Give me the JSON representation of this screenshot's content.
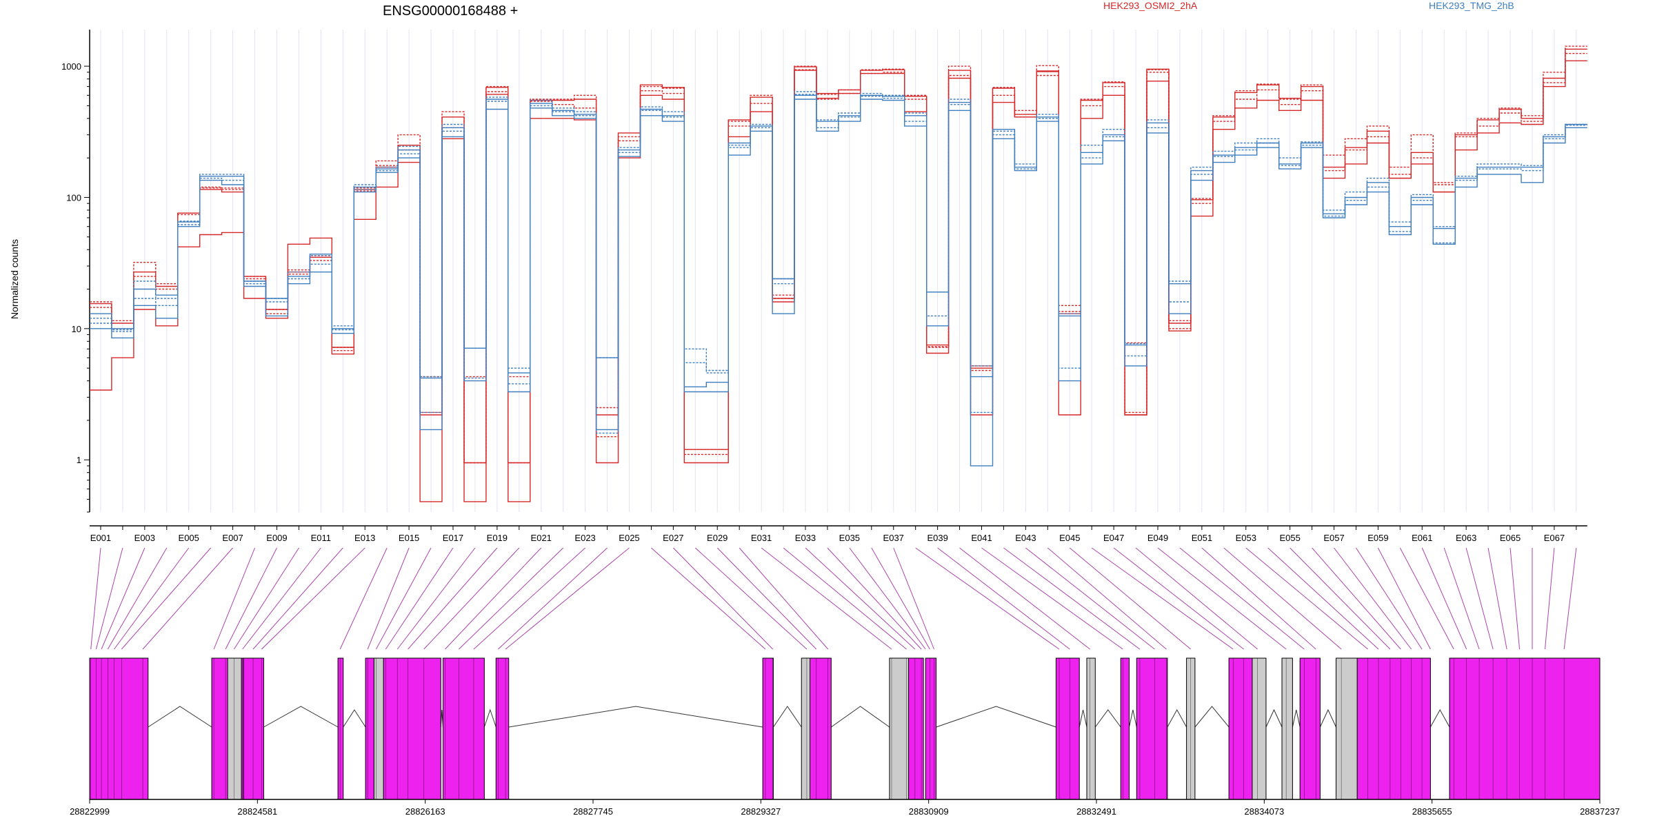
{
  "chart_data": {
    "type": "line",
    "title": "ENSG00000168488 +",
    "ylabel": "Normalized counts",
    "yscale": "log",
    "ylim": [
      0.4,
      1900
    ],
    "yticks": [
      1,
      10,
      100,
      1000
    ],
    "legend": [
      "HEK293_OSMI2_2hA",
      "HEK293_TMG_2hB"
    ],
    "legend_placement": "top-right",
    "colors": {
      "osmi2": "#d62728",
      "tmg": "#3f7fbf",
      "exon": "#ee22ee",
      "exon_gray": "#cccccc",
      "link": "#aa44aa"
    },
    "exon_ids": [
      "E001",
      "E002",
      "E003",
      "E004",
      "E005",
      "E006",
      "E007",
      "E008",
      "E009",
      "E010",
      "E011",
      "E012",
      "E013",
      "E014",
      "E015",
      "E016",
      "E017",
      "E018",
      "E019",
      "E020",
      "E021",
      "E022",
      "E023",
      "E024",
      "E025",
      "E026",
      "E027",
      "E028",
      "E029",
      "E030",
      "E031",
      "E032",
      "E033",
      "E034",
      "E035",
      "E036",
      "E037",
      "E038",
      "E039",
      "E040",
      "E041",
      "E042",
      "E043",
      "E044",
      "E045",
      "E046",
      "E047",
      "E048",
      "E049",
      "E050",
      "E051",
      "E052",
      "E053",
      "E054",
      "E055",
      "E056",
      "E057",
      "E058",
      "E059",
      "E060",
      "E061",
      "E062",
      "E063",
      "E064",
      "E065",
      "E066",
      "E067",
      "E068"
    ],
    "x_tick_labels": [
      "E001",
      "E003",
      "E005",
      "E007",
      "E009",
      "E011",
      "E013",
      "E015",
      "E017",
      "E019",
      "E021",
      "E023",
      "E025",
      "E027",
      "E029",
      "E031",
      "E033",
      "E035",
      "E037",
      "E039",
      "E041",
      "E043",
      "E045",
      "E047",
      "E049",
      "E051",
      "E053",
      "E055",
      "E057",
      "E059",
      "E061",
      "E063",
      "E065",
      "E067"
    ],
    "series": [
      {
        "name": "HEK293_OSMI2_2hA",
        "group": "osmi2",
        "values": [
          15.5,
          11,
          27,
          21,
          76,
          115,
          110,
          25,
          14,
          27,
          35,
          7.2,
          115,
          170,
          250,
          2.2,
          410,
          0.95,
          690,
          0.95,
          550,
          550,
          560,
          2.2,
          310,
          720,
          690,
          1.2,
          1.2,
          390,
          580,
          17,
          990,
          620,
          660,
          930,
          940,
          590,
          7.5,
          930,
          5,
          680,
          430,
          910,
          13,
          550,
          750,
          2.2,
          950,
          11,
          96,
          410,
          630,
          720,
          570,
          700,
          170,
          240,
          320,
          140,
          220,
          110,
          300,
          390,
          470,
          400,
          810,
          1350
        ]
      },
      {
        "name": "HEK293_OSMI2_2hA",
        "group": "osmi2",
        "values": [
          14.5,
          10,
          25,
          20,
          74,
          118,
          115,
          24,
          13,
          26,
          33,
          6.8,
          112,
          175,
          230,
          4.3,
          340,
          4.3,
          640,
          4.3,
          540,
          510,
          480,
          2.5,
          270,
          650,
          620,
          1.1,
          1.1,
          350,
          520,
          18,
          940,
          560,
          620,
          880,
          900,
          560,
          7.2,
          850,
          4.8,
          600,
          410,
          850,
          15,
          500,
          700,
          7.8,
          900,
          10,
          90,
          380,
          560,
          660,
          510,
          650,
          160,
          230,
          290,
          150,
          200,
          125,
          290,
          350,
          440,
          380,
          750,
          1250
        ]
      },
      {
        "name": "HEK293_OSMI2_2hA",
        "group": "osmi2",
        "values": [
          3.4,
          6,
          14,
          10.5,
          42,
          52,
          54,
          17,
          12,
          44,
          49,
          6.4,
          68,
          120,
          185,
          0.48,
          280,
          0.48,
          610,
          0.48,
          400,
          400,
          390,
          0.95,
          200,
          600,
          560,
          0.95,
          0.95,
          290,
          450,
          16,
          930,
          570,
          620,
          880,
          880,
          450,
          6.5,
          810,
          2.2,
          530,
          410,
          920,
          2.2,
          400,
          600,
          2.2,
          770,
          9.6,
          72,
          330,
          480,
          550,
          460,
          550,
          140,
          180,
          260,
          140,
          180,
          110,
          230,
          310,
          370,
          360,
          700,
          1100
        ]
      },
      {
        "name": "HEK293_OSMI2_2hA",
        "group": "osmi2",
        "values": [
          16,
          11.5,
          32,
          22,
          76,
          120,
          118,
          25,
          14,
          28,
          36,
          7.2,
          118,
          190,
          300,
          2.3,
          450,
          0.95,
          700,
          0.95,
          560,
          560,
          600,
          1.5,
          290,
          700,
          680,
          1.2,
          1.2,
          380,
          600,
          17,
          1000,
          610,
          660,
          940,
          950,
          600,
          7.3,
          1000,
          5.2,
          690,
          460,
          1010,
          13.5,
          560,
          760,
          2.3,
          940,
          11.5,
          98,
          420,
          650,
          730,
          560,
          720,
          210,
          280,
          350,
          170,
          300,
          130,
          310,
          400,
          480,
          420,
          900,
          1420
        ]
      },
      {
        "name": "HEK293_TMG_2hB",
        "group": "tmg",
        "values": [
          13,
          10,
          20,
          18,
          65,
          145,
          145,
          23,
          17,
          25,
          37,
          10,
          120,
          165,
          230,
          4.2,
          340,
          7.1,
          560,
          4.6,
          520,
          460,
          430,
          6,
          230,
          470,
          420,
          3.6,
          3.9,
          260,
          350,
          24,
          600,
          380,
          420,
          600,
          590,
          420,
          19,
          530,
          4.3,
          330,
          170,
          410,
          12.5,
          220,
          300,
          7.5,
          370,
          22,
          160,
          210,
          240,
          260,
          180,
          260,
          75,
          100,
          130,
          60,
          100,
          58,
          140,
          170,
          170,
          170,
          290,
          360
        ]
      },
      {
        "name": "HEK293_TMG_2hB",
        "group": "tmg",
        "values": [
          11,
          9.5,
          17,
          15,
          62,
          140,
          135,
          22,
          16,
          24,
          31,
          9.8,
          115,
          160,
          215,
          2.3,
          320,
          4.2,
          540,
          3.8,
          500,
          450,
          420,
          1.6,
          220,
          460,
          410,
          5.5,
          4.6,
          240,
          340,
          22,
          610,
          340,
          410,
          590,
          570,
          380,
          12.5,
          510,
          2.3,
          300,
          165,
          400,
          5,
          200,
          290,
          6.2,
          340,
          16,
          150,
          205,
          230,
          260,
          175,
          250,
          72,
          95,
          120,
          55,
          95,
          45,
          135,
          165,
          165,
          160,
          280,
          355
        ]
      },
      {
        "name": "HEK293_TMG_2hB",
        "group": "tmg",
        "values": [
          10,
          8.5,
          15,
          12,
          60,
          135,
          125,
          21,
          12.5,
          22,
          27,
          9.2,
          110,
          155,
          200,
          1.7,
          290,
          4,
          470,
          3.3,
          480,
          420,
          400,
          1.7,
          205,
          420,
          380,
          3.3,
          3.3,
          210,
          320,
          13,
          560,
          320,
          380,
          560,
          550,
          350,
          10.5,
          460,
          0.9,
          280,
          160,
          380,
          4,
          180,
          270,
          5.2,
          310,
          13,
          135,
          185,
          210,
          240,
          165,
          240,
          70,
          88,
          110,
          52,
          88,
          44,
          120,
          150,
          150,
          130,
          260,
          340
        ]
      },
      {
        "name": "HEK293_TMG_2hB",
        "group": "tmg",
        "values": [
          12,
          9.8,
          23,
          17,
          66,
          150,
          150,
          23,
          17,
          27,
          36,
          10.5,
          125,
          170,
          245,
          4.3,
          360,
          7.1,
          580,
          5,
          550,
          480,
          450,
          6,
          240,
          490,
          450,
          7,
          4.8,
          250,
          360,
          24,
          640,
          390,
          440,
          620,
          600,
          440,
          19,
          560,
          5.2,
          320,
          180,
          430,
          13,
          250,
          330,
          7.7,
          390,
          23,
          170,
          225,
          260,
          280,
          200,
          265,
          80,
          110,
          140,
          65,
          105,
          60,
          145,
          180,
          180,
          175,
          300,
          360
        ]
      }
    ],
    "genome_axis": {
      "tick_labels": [
        "28822999",
        "28824581",
        "28826163",
        "28827745",
        "28829327",
        "28830909",
        "28832491",
        "28834073",
        "28835655",
        "28837237"
      ],
      "range": [
        28822999,
        28837237
      ],
      "exon_blocks": [
        {
          "start": 28822999,
          "end": 28823550,
          "fill": "exon"
        },
        {
          "start": 28824150,
          "end": 28824450,
          "fill": "exon"
        },
        {
          "start": 28824300,
          "end": 28824430,
          "fill": "exon_gray"
        },
        {
          "start": 28824450,
          "end": 28824640,
          "fill": "exon"
        },
        {
          "start": 28825340,
          "end": 28825390,
          "fill": "exon"
        },
        {
          "start": 28825600,
          "end": 28825680,
          "fill": "exon"
        },
        {
          "start": 28825680,
          "end": 28825770,
          "fill": "exon_gray"
        },
        {
          "start": 28825770,
          "end": 28826310,
          "fill": "exon"
        },
        {
          "start": 28826330,
          "end": 28826720,
          "fill": "exon"
        },
        {
          "start": 28826830,
          "end": 28826950,
          "fill": "exon"
        },
        {
          "start": 28829345,
          "end": 28829445,
          "fill": "exon"
        },
        {
          "start": 28829710,
          "end": 28829790,
          "fill": "exon_gray"
        },
        {
          "start": 28829790,
          "end": 28829990,
          "fill": "exon"
        },
        {
          "start": 28830540,
          "end": 28830720,
          "fill": "exon_gray"
        },
        {
          "start": 28830720,
          "end": 28830860,
          "fill": "exon"
        },
        {
          "start": 28830880,
          "end": 28830980,
          "fill": "exon"
        },
        {
          "start": 28832110,
          "end": 28832330,
          "fill": "exon"
        },
        {
          "start": 28832400,
          "end": 28832480,
          "fill": "exon_gray"
        },
        {
          "start": 28832720,
          "end": 28832800,
          "fill": "exon"
        },
        {
          "start": 28832870,
          "end": 28833160,
          "fill": "exon"
        },
        {
          "start": 28833340,
          "end": 28833420,
          "fill": "exon_gray"
        },
        {
          "start": 28833740,
          "end": 28833960,
          "fill": "exon"
        },
        {
          "start": 28833960,
          "end": 28834090,
          "fill": "exon_gray"
        },
        {
          "start": 28834240,
          "end": 28834340,
          "fill": "exon_gray"
        },
        {
          "start": 28834410,
          "end": 28834600,
          "fill": "exon"
        },
        {
          "start": 28834750,
          "end": 28834950,
          "fill": "exon_gray"
        },
        {
          "start": 28834950,
          "end": 28835640,
          "fill": "exon"
        },
        {
          "start": 28835820,
          "end": 28837237,
          "fill": "exon"
        }
      ],
      "intron_links": [
        [
          28823550,
          28824150
        ],
        [
          28824640,
          28825340
        ],
        [
          28825390,
          28825600
        ],
        [
          28826310,
          28826330
        ],
        [
          28826720,
          28826830
        ],
        [
          28826950,
          28829345
        ],
        [
          28829445,
          28829710
        ],
        [
          28829990,
          28830540
        ],
        [
          28830980,
          28832110
        ],
        [
          28832330,
          28832400
        ],
        [
          28832480,
          28832720
        ],
        [
          28832800,
          28832870
        ],
        [
          28833160,
          28833340
        ],
        [
          28833420,
          28833740
        ],
        [
          28834090,
          28834240
        ],
        [
          28834340,
          28834410
        ],
        [
          28834600,
          28834750
        ],
        [
          28835640,
          28835820
        ]
      ],
      "exon_anchor_positions": [
        28823010,
        28823060,
        28823110,
        28823170,
        28823230,
        28823300,
        28823500,
        28824170,
        28824280,
        28824360,
        28824440,
        28824540,
        28824620,
        28825360,
        28825620,
        28825700,
        28825790,
        28825900,
        28826000,
        28826150,
        28826350,
        28826480,
        28826620,
        28826850,
        28826920,
        28829370,
        28829440,
        28829760,
        28829850,
        28829960,
        28830560,
        28830700,
        28830780,
        28830840,
        28830880,
        28830920,
        28830960,
        28832140,
        28832240,
        28832430,
        28832740,
        28832900,
        28833040,
        28833150,
        28833380,
        28833780,
        28833880,
        28834010,
        28834280,
        28834450,
        28834560,
        28834800,
        28835050,
        28835150,
        28835260,
        28835360,
        28835460,
        28835560,
        28835640,
        28835860,
        28835980,
        28836100,
        28836230,
        28836360,
        28836480,
        28836600,
        28836720,
        28836900
      ]
    }
  }
}
